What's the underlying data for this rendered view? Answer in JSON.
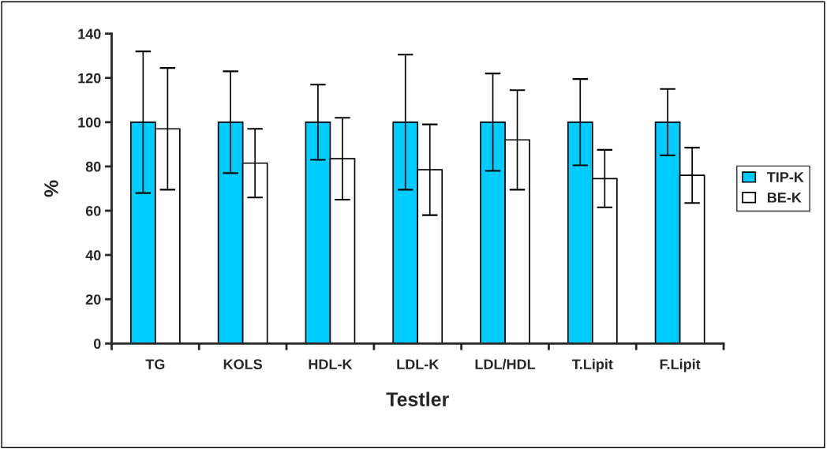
{
  "chart_data": {
    "type": "bar",
    "xlabel": "Testler",
    "ylabel": "%",
    "categories": [
      "TG",
      "KOLS",
      "HDL-K",
      "LDL-K",
      "LDL/HDL",
      "T.Lipit",
      "F.Lipit"
    ],
    "series": [
      {
        "name": "TIP-K",
        "color": "#00ccff",
        "values": [
          100,
          100,
          100,
          100,
          100,
          100,
          100
        ],
        "errors": [
          32,
          23,
          17,
          30.5,
          22,
          19.5,
          15
        ]
      },
      {
        "name": "BE-K",
        "color": "#ffffff",
        "values": [
          97,
          81.5,
          83.5,
          78.5,
          92,
          74.5,
          76
        ],
        "errors": [
          27.5,
          15.5,
          18.5,
          20.5,
          22.5,
          13,
          12.5
        ]
      }
    ],
    "ylim": [
      0,
      140
    ],
    "yticks": [
      0,
      20,
      40,
      60,
      80,
      100,
      120,
      140
    ],
    "grid": false,
    "legend": "right"
  }
}
